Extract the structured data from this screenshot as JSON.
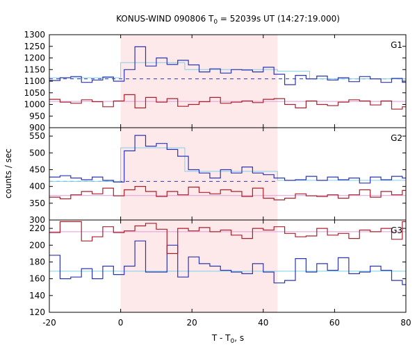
{
  "chart_data": {
    "type": "line",
    "title": {
      "prefix": "KONUS-WIND 090806 T",
      "sub": "0",
      "suffix": " = 52039s UT (14:27:19.000)"
    },
    "xlabel": {
      "prefix": "T - T",
      "sub": "0",
      "suffix": ", s"
    },
    "ylabel": "counts / sec",
    "xlim": [
      -20,
      80
    ],
    "x_ticks": [
      "-20",
      "0",
      "20",
      "40",
      "60",
      "80"
    ],
    "shaded_interval": [
      0,
      44
    ],
    "colors": {
      "shade": "#fde8ea",
      "blue": "#2b35b0",
      "red": "#a8202c",
      "cyan": "#7fd0ea",
      "pink": "#e39ad8"
    },
    "bin_edges": [
      -20,
      -17,
      -14,
      -11,
      -8,
      -5,
      -2,
      1,
      4,
      7,
      10,
      13,
      16,
      19,
      22,
      25,
      28,
      31,
      34,
      37,
      40,
      43,
      46,
      49,
      52,
      55,
      58,
      61,
      64,
      67,
      70,
      73,
      76,
      79,
      80
    ],
    "panels": [
      {
        "label": "G1",
        "ylim": [
          900,
          1300
        ],
        "y_ticks": [
          900,
          950,
          1000,
          1050,
          1100,
          1150,
          1200,
          1250,
          1300
        ],
        "series": [
          {
            "name": "G1 blue counts",
            "color": "blue",
            "values": [
              1103,
              1115,
              1120,
              1095,
              1105,
              1118,
              1100,
              1150,
              1248,
              1165,
              1200,
              1172,
              1190,
              1170,
              1140,
              1153,
              1135,
              1150,
              1148,
              1140,
              1160,
              1130,
              1085,
              1125,
              1110,
              1122,
              1105,
              1115,
              1098,
              1120,
              1110,
              1095,
              1112,
              1095
            ]
          },
          {
            "name": "G1 red counts",
            "color": "red",
            "values": [
              1022,
              1010,
              1005,
              1020,
              1012,
              990,
              1015,
              1042,
              985,
              1030,
              1010,
              1025,
              992,
              1000,
              1012,
              1030,
              1005,
              1010,
              1015,
              1008,
              1022,
              1025,
              1000,
              985,
              1015,
              1000,
              995,
              1010,
              1020,
              1015,
              998,
              1015,
              980,
              990
            ]
          }
        ],
        "fits": [
          {
            "name": "G1 blue background",
            "color": "blue",
            "style": "dashed",
            "x": [
              -20,
              80
            ],
            "y": [
              1110,
              1110
            ]
          },
          {
            "name": "G1 blue signal",
            "color": "cyan",
            "style": "solid",
            "x": [
              -20,
              0,
              0,
              18,
              18,
              44,
              44,
              53,
              53,
              80
            ],
            "y": [
              1115,
              1115,
              1180,
              1180,
              1150,
              1150,
              1143,
              1143,
              1110,
              1110
            ]
          },
          {
            "name": "G1 red background",
            "color": "pink",
            "style": "solid",
            "x": [
              -20,
              80
            ],
            "y": [
              1013,
              1013
            ]
          }
        ]
      },
      {
        "label": "G2",
        "ylim": [
          300,
          575
        ],
        "y_ticks": [
          300,
          350,
          400,
          450,
          500,
          550
        ],
        "series": [
          {
            "name": "G2 blue counts",
            "color": "blue",
            "values": [
              428,
              432,
              425,
              420,
              428,
              418,
              413,
              506,
              552,
              520,
              528,
              510,
              490,
              450,
              440,
              425,
              450,
              440,
              458,
              440,
              435,
              425,
              418,
              420,
              430,
              418,
              428,
              420,
              425,
              410,
              428,
              420,
              430,
              425
            ]
          },
          {
            "name": "G2 red counts",
            "color": "red",
            "values": [
              368,
              363,
              375,
              385,
              378,
              395,
              372,
              390,
              400,
              385,
              370,
              385,
              375,
              398,
              382,
              378,
              390,
              385,
              370,
              395,
              365,
              360,
              365,
              378,
              372,
              370,
              375,
              365,
              375,
              390,
              368,
              385,
              375,
              388
            ]
          }
        ],
        "fits": [
          {
            "name": "G2 blue background",
            "color": "blue",
            "style": "dashed",
            "x": [
              -20,
              44
            ],
            "y": [
              415,
              415
            ]
          },
          {
            "name": "G2 blue signal",
            "color": "cyan",
            "style": "solid",
            "x": [
              -20,
              0,
              0,
              18,
              18,
              44,
              44,
              80
            ],
            "y": [
              415,
              415,
              515,
              515,
              445,
              445,
              418,
              418
            ]
          },
          {
            "name": "G2 red background",
            "color": "pink",
            "style": "solid",
            "x": [
              -20,
              80
            ],
            "y": [
              373,
              373
            ]
          }
        ]
      },
      {
        "label": "G3",
        "ylim": [
          120,
          230
        ],
        "y_ticks": [
          120,
          140,
          160,
          180,
          200,
          220
        ],
        "series": [
          {
            "name": "G3 blue counts",
            "color": "blue",
            "values": [
              188,
              160,
              162,
              172,
              160,
              175,
              165,
              175,
              205,
              168,
              168,
              200,
              162,
              186,
              178,
              175,
              170,
              168,
              166,
              178,
              168,
              155,
              158,
              184,
              168,
              178,
              170,
              185,
              166,
              168,
              175,
              170,
              158,
              153
            ]
          },
          {
            "name": "G3 red counts",
            "color": "red",
            "values": [
              215,
              228,
              228,
              205,
              210,
              222,
              215,
              217,
              223,
              226,
              219,
              190,
              220,
              217,
              221,
              216,
              218,
              212,
              208,
              220,
              218,
              222,
              214,
              210,
              211,
              220,
              212,
              214,
              208,
              218,
              216,
              220,
              207,
              228
            ]
          }
        ],
        "fits": [
          {
            "name": "G3 blue background",
            "color": "cyan",
            "style": "solid",
            "x": [
              -20,
              80
            ],
            "y": [
              169,
              169
            ]
          },
          {
            "name": "G3 red background",
            "color": "pink",
            "style": "solid",
            "x": [
              -20,
              80
            ],
            "y": [
              216,
              216
            ]
          }
        ]
      }
    ]
  }
}
